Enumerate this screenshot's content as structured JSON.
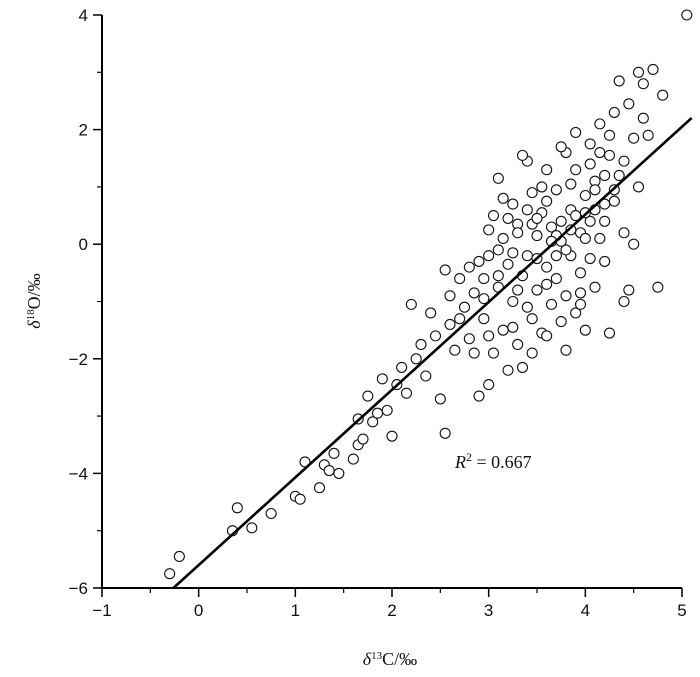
{
  "chart_data": {
    "type": "scatter",
    "title": "",
    "xlabel_italic": "δ",
    "xlabel_sup": "13",
    "xlabel_rest": "C/‰",
    "ylabel_italic": "δ",
    "ylabel_sup": "18",
    "ylabel_rest": "O/‰",
    "xlim": [
      -1,
      5
    ],
    "ylim": [
      -6,
      4
    ],
    "xticks": [
      -1,
      0,
      1,
      2,
      3,
      4,
      5
    ],
    "yticks": [
      -6,
      -4,
      -2,
      0,
      2,
      4
    ],
    "xtick_labels": [
      "−1",
      "0",
      "1",
      "2",
      "3",
      "4",
      "5"
    ],
    "ytick_labels": [
      "−6",
      "−4",
      "−2",
      "0",
      "2",
      "4"
    ],
    "grid": false,
    "fit_line": {
      "slope": 1.53,
      "intercept": -5.6
    },
    "annotation_r": "R",
    "annotation_sup": "2",
    "annotation_value": " = 0.667",
    "points": [
      [
        -0.3,
        -5.75
      ],
      [
        -0.2,
        -5.45
      ],
      [
        0.35,
        -5.0
      ],
      [
        0.4,
        -4.6
      ],
      [
        0.55,
        -4.95
      ],
      [
        0.75,
        -4.7
      ],
      [
        1.0,
        -4.4
      ],
      [
        1.05,
        -4.45
      ],
      [
        1.1,
        -3.8
      ],
      [
        1.25,
        -4.25
      ],
      [
        1.3,
        -3.85
      ],
      [
        1.35,
        -3.95
      ],
      [
        1.4,
        -3.65
      ],
      [
        1.45,
        -4.0
      ],
      [
        1.6,
        -3.75
      ],
      [
        1.65,
        -3.5
      ],
      [
        1.7,
        -3.4
      ],
      [
        1.75,
        -2.65
      ],
      [
        1.65,
        -3.05
      ],
      [
        1.8,
        -3.1
      ],
      [
        1.85,
        -2.95
      ],
      [
        1.9,
        -2.35
      ],
      [
        1.95,
        -2.9
      ],
      [
        2.0,
        -3.35
      ],
      [
        2.05,
        -2.45
      ],
      [
        2.1,
        -2.15
      ],
      [
        2.15,
        -2.6
      ],
      [
        2.2,
        -1.05
      ],
      [
        2.25,
        -2.0
      ],
      [
        2.3,
        -1.75
      ],
      [
        2.35,
        -2.3
      ],
      [
        2.4,
        -1.2
      ],
      [
        2.45,
        -1.6
      ],
      [
        2.5,
        -2.7
      ],
      [
        2.55,
        -3.3
      ],
      [
        2.55,
        -0.45
      ],
      [
        2.6,
        -1.4
      ],
      [
        2.65,
        -1.85
      ],
      [
        2.7,
        -0.6
      ],
      [
        2.75,
        -1.1
      ],
      [
        2.8,
        -1.65
      ],
      [
        2.85,
        -0.85
      ],
      [
        2.9,
        -2.65
      ],
      [
        2.9,
        -0.3
      ],
      [
        2.95,
        -1.3
      ],
      [
        3.0,
        -2.45
      ],
      [
        3.0,
        -0.2
      ],
      [
        3.05,
        -1.9
      ],
      [
        3.05,
        0.5
      ],
      [
        3.1,
        -0.75
      ],
      [
        3.1,
        1.15
      ],
      [
        3.15,
        -1.5
      ],
      [
        3.15,
        0.1
      ],
      [
        3.2,
        -2.2
      ],
      [
        3.2,
        -0.35
      ],
      [
        3.25,
        0.7
      ],
      [
        3.25,
        -1.0
      ],
      [
        3.3,
        -1.75
      ],
      [
        3.3,
        0.35
      ],
      [
        3.35,
        -0.55
      ],
      [
        3.35,
        -2.15
      ],
      [
        3.4,
        1.45
      ],
      [
        3.4,
        -0.2
      ],
      [
        3.45,
        -1.3
      ],
      [
        3.45,
        0.9
      ],
      [
        3.5,
        -0.8
      ],
      [
        3.5,
        0.15
      ],
      [
        3.55,
        -1.55
      ],
      [
        3.55,
        0.55
      ],
      [
        3.6,
        -0.4
      ],
      [
        3.6,
        1.3
      ],
      [
        3.65,
        -1.05
      ],
      [
        3.65,
        0.3
      ],
      [
        3.7,
        -0.6
      ],
      [
        3.7,
        0.95
      ],
      [
        3.75,
        -1.35
      ],
      [
        3.75,
        0.05
      ],
      [
        3.8,
        -0.9
      ],
      [
        3.8,
        1.6
      ],
      [
        3.85,
        -0.2
      ],
      [
        3.85,
        0.6
      ],
      [
        3.9,
        -1.2
      ],
      [
        3.9,
        1.95
      ],
      [
        3.95,
        -0.5
      ],
      [
        3.95,
        0.2
      ],
      [
        4.0,
        0.85
      ],
      [
        4.0,
        -1.5
      ],
      [
        4.05,
        0.4
      ],
      [
        4.05,
        1.4
      ],
      [
        4.1,
        -0.75
      ],
      [
        4.1,
        1.1
      ],
      [
        4.15,
        0.1
      ],
      [
        4.15,
        2.1
      ],
      [
        4.2,
        0.7
      ],
      [
        4.2,
        -0.3
      ],
      [
        4.25,
        1.55
      ],
      [
        4.3,
        2.3
      ],
      [
        4.3,
        0.95
      ],
      [
        4.35,
        2.85
      ],
      [
        4.35,
        1.2
      ],
      [
        4.4,
        0.2
      ],
      [
        4.45,
        2.45
      ],
      [
        4.45,
        -0.8
      ],
      [
        4.5,
        1.85
      ],
      [
        4.5,
        0.0
      ],
      [
        4.55,
        3.0
      ],
      [
        4.55,
        1.0
      ],
      [
        4.6,
        2.2
      ],
      [
        4.6,
        2.8
      ],
      [
        4.65,
        1.9
      ],
      [
        4.7,
        3.05
      ],
      [
        4.75,
        -0.75
      ],
      [
        4.8,
        2.6
      ],
      [
        5.05,
        4.0
      ],
      [
        2.6,
        -0.9
      ],
      [
        2.7,
        -1.3
      ],
      [
        2.8,
        -0.4
      ],
      [
        2.95,
        -0.95
      ],
      [
        3.0,
        0.25
      ],
      [
        3.1,
        -0.1
      ],
      [
        3.2,
        0.45
      ],
      [
        3.3,
        -0.8
      ],
      [
        3.4,
        0.6
      ],
      [
        3.5,
        -0.25
      ],
      [
        3.6,
        0.75
      ],
      [
        3.7,
        0.15
      ],
      [
        3.8,
        -0.1
      ],
      [
        3.9,
        0.5
      ],
      [
        4.0,
        0.1
      ],
      [
        4.1,
        0.6
      ],
      [
        4.2,
        1.2
      ],
      [
        3.35,
        1.55
      ],
      [
        3.55,
        1.0
      ],
      [
        3.75,
        1.7
      ],
      [
        3.9,
        1.3
      ],
      [
        4.05,
        1.75
      ],
      [
        4.15,
        1.6
      ],
      [
        4.25,
        1.9
      ],
      [
        3.25,
        -0.15
      ],
      [
        3.45,
        0.35
      ],
      [
        3.65,
        0.05
      ],
      [
        3.85,
        1.05
      ],
      [
        3.95,
        -0.85
      ],
      [
        3.15,
        0.8
      ],
      [
        2.85,
        -1.9
      ],
      [
        3.0,
        -1.6
      ],
      [
        3.25,
        -1.45
      ],
      [
        3.45,
        -1.9
      ],
      [
        3.6,
        -1.6
      ],
      [
        3.8,
        -1.85
      ],
      [
        3.95,
        -1.05
      ],
      [
        4.05,
        -0.25
      ],
      [
        4.25,
        -1.55
      ],
      [
        4.4,
        -1.0
      ],
      [
        3.7,
        -0.2
      ],
      [
        3.5,
        0.45
      ],
      [
        3.3,
        0.2
      ],
      [
        3.1,
        -0.55
      ],
      [
        2.95,
        -0.6
      ],
      [
        3.4,
        -1.1
      ],
      [
        3.6,
        -0.7
      ],
      [
        3.75,
        0.4
      ],
      [
        3.85,
        0.25
      ],
      [
        4.0,
        0.55
      ],
      [
        4.1,
        0.95
      ],
      [
        4.2,
        0.4
      ],
      [
        4.3,
        0.75
      ],
      [
        4.4,
        1.45
      ]
    ]
  }
}
